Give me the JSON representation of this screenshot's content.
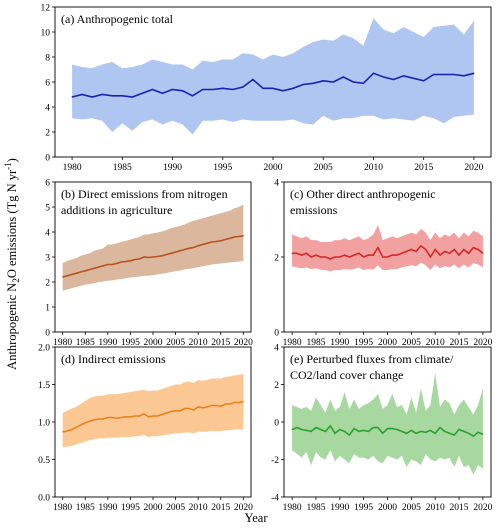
{
  "figure": {
    "ylabel_main": "Anthropogenic N",
    "ylabel_sub": "2",
    "ylabel_mid": "O emissions (Tg N yr",
    "ylabel_sup": "-1",
    "ylabel_end": ")",
    "xlabel": "Year"
  },
  "chart_data": [
    {
      "id": "a",
      "type": "area",
      "title_lines": [
        "(a) Anthropogenic total"
      ],
      "line_color": "#1f1fb4",
      "band_color": "#aec6f0",
      "xlim": [
        1978.3,
        2021.7
      ],
      "ylim": [
        0,
        12
      ],
      "xticks": [
        1980,
        1985,
        1990,
        1995,
        2000,
        2005,
        2010,
        2015,
        2020
      ],
      "yticks": [
        0,
        2,
        4,
        6,
        8,
        10,
        12
      ],
      "x": [
        1980,
        1981,
        1982,
        1983,
        1984,
        1985,
        1986,
        1987,
        1988,
        1989,
        1990,
        1991,
        1992,
        1993,
        1994,
        1995,
        1996,
        1997,
        1998,
        1999,
        2000,
        2001,
        2002,
        2003,
        2004,
        2005,
        2006,
        2007,
        2008,
        2009,
        2010,
        2011,
        2012,
        2013,
        2014,
        2015,
        2016,
        2017,
        2018,
        2019,
        2020
      ],
      "mean": [
        4.8,
        5.0,
        4.8,
        5.0,
        4.9,
        4.9,
        4.8,
        5.1,
        5.4,
        5.1,
        5.4,
        5.3,
        4.9,
        5.4,
        5.4,
        5.5,
        5.4,
        5.6,
        6.2,
        5.5,
        5.5,
        5.3,
        5.5,
        5.8,
        5.9,
        6.1,
        6.0,
        6.4,
        6.0,
        5.9,
        6.7,
        6.4,
        6.2,
        6.5,
        6.3,
        6.1,
        6.6,
        6.6,
        6.6,
        6.5,
        6.7
      ],
      "upper": [
        7.4,
        7.2,
        7.1,
        7.4,
        7.6,
        7.1,
        7.2,
        7.4,
        7.8,
        7.6,
        7.4,
        7.4,
        7.0,
        7.7,
        7.6,
        7.8,
        7.8,
        8.3,
        8.2,
        7.8,
        8.2,
        8.0,
        8.3,
        8.8,
        9.2,
        9.4,
        9.3,
        9.8,
        9.5,
        8.9,
        11.1,
        10.2,
        9.9,
        10.4,
        10.0,
        9.6,
        10.4,
        10.5,
        10.6,
        9.8,
        10.9
      ],
      "lower": [
        3.1,
        3.0,
        3.1,
        2.9,
        2.0,
        2.7,
        2.1,
        2.8,
        3.0,
        2.6,
        2.9,
        2.6,
        1.8,
        2.9,
        2.9,
        3.0,
        2.8,
        3.0,
        2.9,
        2.9,
        2.9,
        2.9,
        3.0,
        2.7,
        2.6,
        3.3,
        2.9,
        3.1,
        3.1,
        3.3,
        3.3,
        3.0,
        3.1,
        3.0,
        2.9,
        3.3,
        3.1,
        2.7,
        3.2,
        3.3,
        3.4
      ]
    },
    {
      "id": "b",
      "type": "area",
      "title_lines": [
        "(b) Direct emissions from nitrogen",
        "additions in agriculture"
      ],
      "line_color": "#b5541e",
      "band_color": "#dbb79e",
      "xlim": [
        1978.3,
        2021.7
      ],
      "ylim": [
        0,
        6
      ],
      "xticks": [
        1980,
        1985,
        1990,
        1995,
        2000,
        2005,
        2010,
        2015,
        2020
      ],
      "yticks": [
        0,
        1,
        2,
        3,
        4,
        5,
        6
      ],
      "x": [
        1980,
        1981,
        1982,
        1983,
        1984,
        1985,
        1986,
        1987,
        1988,
        1989,
        1990,
        1991,
        1992,
        1993,
        1994,
        1995,
        1996,
        1997,
        1998,
        1999,
        2000,
        2001,
        2002,
        2003,
        2004,
        2005,
        2006,
        2007,
        2008,
        2009,
        2010,
        2011,
        2012,
        2013,
        2014,
        2015,
        2016,
        2017,
        2018,
        2019,
        2020
      ],
      "mean": [
        2.2,
        2.25,
        2.3,
        2.35,
        2.4,
        2.45,
        2.5,
        2.55,
        2.6,
        2.65,
        2.7,
        2.7,
        2.75,
        2.8,
        2.82,
        2.85,
        2.9,
        2.92,
        3.0,
        2.98,
        3.0,
        3.02,
        3.05,
        3.1,
        3.15,
        3.2,
        3.25,
        3.3,
        3.35,
        3.38,
        3.45,
        3.5,
        3.55,
        3.6,
        3.62,
        3.65,
        3.7,
        3.75,
        3.8,
        3.82,
        3.85
      ],
      "upper": [
        2.75,
        2.85,
        2.9,
        2.95,
        3.05,
        3.1,
        3.15,
        3.25,
        3.3,
        3.35,
        3.5,
        3.5,
        3.55,
        3.6,
        3.65,
        3.7,
        3.75,
        3.8,
        3.9,
        3.9,
        3.95,
        3.98,
        4.02,
        4.08,
        4.15,
        4.2,
        4.25,
        4.3,
        4.38,
        4.45,
        4.5,
        4.55,
        4.6,
        4.65,
        4.7,
        4.75,
        4.8,
        4.85,
        4.95,
        5.0,
        5.1
      ],
      "lower": [
        1.65,
        1.7,
        1.75,
        1.8,
        1.85,
        1.9,
        1.92,
        1.95,
        2.0,
        2.02,
        2.05,
        2.07,
        2.1,
        2.12,
        2.15,
        2.18,
        2.2,
        2.22,
        2.25,
        2.25,
        2.28,
        2.3,
        2.33,
        2.36,
        2.4,
        2.43,
        2.46,
        2.5,
        2.53,
        2.55,
        2.6,
        2.63,
        2.66,
        2.7,
        2.72,
        2.74,
        2.76,
        2.78,
        2.8,
        2.82,
        2.84
      ]
    },
    {
      "id": "c",
      "type": "area",
      "title_lines": [
        "(c) Other direct anthropogenic",
        "emissions"
      ],
      "line_color": "#d62728",
      "band_color": "#f2a1a1",
      "xlim": [
        1978.3,
        2021.7
      ],
      "ylim": [
        0,
        4
      ],
      "xticks": [
        1980,
        1985,
        1990,
        1995,
        2000,
        2005,
        2010,
        2015,
        2020
      ],
      "yticks": [
        0,
        2,
        4
      ],
      "x": [
        1980,
        1981,
        1982,
        1983,
        1984,
        1985,
        1986,
        1987,
        1988,
        1989,
        1990,
        1991,
        1992,
        1993,
        1994,
        1995,
        1996,
        1997,
        1998,
        1999,
        2000,
        2001,
        2002,
        2003,
        2004,
        2005,
        2006,
        2007,
        2008,
        2009,
        2010,
        2011,
        2012,
        2013,
        2014,
        2015,
        2016,
        2017,
        2018,
        2019,
        2020
      ],
      "mean": [
        2.1,
        2.1,
        2.05,
        2.1,
        2.0,
        2.05,
        2.0,
        2.0,
        1.95,
        2.0,
        2.0,
        2.05,
        2.0,
        2.05,
        2.1,
        2.0,
        2.05,
        2.05,
        2.25,
        2.0,
        2.0,
        2.05,
        2.05,
        2.1,
        2.15,
        2.2,
        2.15,
        2.3,
        2.2,
        2.0,
        2.2,
        2.05,
        2.15,
        2.1,
        2.2,
        2.05,
        2.2,
        2.1,
        2.25,
        2.2,
        2.1
      ],
      "upper": [
        2.6,
        2.55,
        2.5,
        2.55,
        2.45,
        2.45,
        2.4,
        2.4,
        2.4,
        2.45,
        2.45,
        2.5,
        2.45,
        2.5,
        2.55,
        2.45,
        2.5,
        2.6,
        2.85,
        2.45,
        2.5,
        2.55,
        2.5,
        2.55,
        2.6,
        2.65,
        2.6,
        2.75,
        2.65,
        2.45,
        2.65,
        2.5,
        2.6,
        2.55,
        2.65,
        2.5,
        2.65,
        2.55,
        2.7,
        2.65,
        2.55
      ],
      "lower": [
        1.75,
        1.72,
        1.7,
        1.72,
        1.68,
        1.7,
        1.66,
        1.65,
        1.62,
        1.65,
        1.65,
        1.68,
        1.66,
        1.68,
        1.72,
        1.65,
        1.68,
        1.66,
        1.78,
        1.65,
        1.65,
        1.68,
        1.68,
        1.72,
        1.75,
        1.78,
        1.75,
        1.85,
        1.78,
        1.65,
        1.8,
        1.7,
        1.76,
        1.72,
        1.8,
        1.7,
        1.8,
        1.72,
        1.84,
        1.8,
        1.72
      ]
    },
    {
      "id": "d",
      "type": "area",
      "title_lines": [
        "(d) Indirect emissions"
      ],
      "line_color": "#e8821e",
      "band_color": "#fbc793",
      "xlim": [
        1978.3,
        2021.7
      ],
      "ylim": [
        0,
        2.0
      ],
      "xticks": [
        1980,
        1985,
        1990,
        1995,
        2000,
        2005,
        2010,
        2015,
        2020
      ],
      "yticks": [
        0.0,
        0.5,
        1.0,
        1.5,
        2.0
      ],
      "ytick_labels": [
        "0.0",
        "0.5",
        "1.0",
        "1.5",
        "2.0"
      ],
      "x": [
        1980,
        1981,
        1982,
        1983,
        1984,
        1985,
        1986,
        1987,
        1988,
        1989,
        1990,
        1991,
        1992,
        1993,
        1994,
        1995,
        1996,
        1997,
        1998,
        1999,
        2000,
        2001,
        2002,
        2003,
        2004,
        2005,
        2006,
        2007,
        2008,
        2009,
        2010,
        2011,
        2012,
        2013,
        2014,
        2015,
        2016,
        2017,
        2018,
        2019,
        2020
      ],
      "mean": [
        0.87,
        0.88,
        0.9,
        0.93,
        0.96,
        0.99,
        1.01,
        1.03,
        1.04,
        1.04,
        1.06,
        1.06,
        1.05,
        1.06,
        1.07,
        1.07,
        1.08,
        1.08,
        1.11,
        1.07,
        1.08,
        1.08,
        1.1,
        1.12,
        1.14,
        1.15,
        1.15,
        1.18,
        1.18,
        1.16,
        1.2,
        1.19,
        1.2,
        1.22,
        1.22,
        1.21,
        1.24,
        1.24,
        1.26,
        1.26,
        1.27
      ],
      "upper": [
        1.12,
        1.15,
        1.18,
        1.2,
        1.24,
        1.28,
        1.32,
        1.34,
        1.35,
        1.35,
        1.37,
        1.37,
        1.37,
        1.38,
        1.39,
        1.4,
        1.41,
        1.42,
        1.43,
        1.41,
        1.42,
        1.42,
        1.44,
        1.46,
        1.48,
        1.5,
        1.5,
        1.53,
        1.54,
        1.52,
        1.56,
        1.55,
        1.56,
        1.58,
        1.58,
        1.58,
        1.6,
        1.61,
        1.62,
        1.63,
        1.64
      ],
      "lower": [
        0.66,
        0.67,
        0.68,
        0.7,
        0.72,
        0.74,
        0.76,
        0.77,
        0.78,
        0.78,
        0.79,
        0.79,
        0.79,
        0.8,
        0.8,
        0.8,
        0.81,
        0.81,
        0.83,
        0.8,
        0.81,
        0.81,
        0.82,
        0.83,
        0.84,
        0.85,
        0.85,
        0.86,
        0.86,
        0.85,
        0.87,
        0.87,
        0.87,
        0.88,
        0.88,
        0.88,
        0.89,
        0.89,
        0.9,
        0.9,
        0.9
      ]
    },
    {
      "id": "e",
      "type": "area",
      "title_lines": [
        "(e) Perturbed fluxes from climate/",
        "CO2/land cover change"
      ],
      "line_color": "#2ca02c",
      "band_color": "#a7d8a0",
      "xlim": [
        1978.3,
        2021.7
      ],
      "ylim": [
        -4,
        4
      ],
      "xticks": [
        1980,
        1985,
        1990,
        1995,
        2000,
        2005,
        2010,
        2015,
        2020
      ],
      "yticks": [
        -4,
        -2,
        0,
        2,
        4
      ],
      "x": [
        1980,
        1981,
        1982,
        1983,
        1984,
        1985,
        1986,
        1987,
        1988,
        1989,
        1990,
        1991,
        1992,
        1993,
        1994,
        1995,
        1996,
        1997,
        1998,
        1999,
        2000,
        2001,
        2002,
        2003,
        2004,
        2005,
        2006,
        2007,
        2008,
        2009,
        2010,
        2011,
        2012,
        2013,
        2014,
        2015,
        2016,
        2017,
        2018,
        2019,
        2020
      ],
      "mean": [
        -0.4,
        -0.3,
        -0.4,
        -0.45,
        -0.5,
        -0.3,
        -0.4,
        -0.5,
        -0.2,
        -0.6,
        -0.4,
        -0.5,
        -0.7,
        -0.35,
        -0.5,
        -0.45,
        -0.5,
        -0.3,
        -0.3,
        -0.6,
        -0.35,
        -0.35,
        -0.4,
        -0.5,
        -0.6,
        -0.45,
        -0.6,
        -0.5,
        -0.55,
        -0.45,
        -0.6,
        -0.3,
        -0.5,
        -0.6,
        -0.7,
        -0.4,
        -0.5,
        -0.6,
        -0.75,
        -0.55,
        -0.65
      ],
      "upper": [
        0.9,
        0.8,
        0.7,
        0.8,
        0.6,
        1.3,
        0.9,
        0.5,
        1.2,
        0.6,
        0.8,
        1.6,
        0.7,
        1.2,
        0.7,
        0.9,
        1.0,
        1.2,
        1.5,
        0.7,
        0.9,
        1.5,
        0.8,
        0.9,
        0.4,
        1.3,
        0.5,
        1.8,
        0.6,
        0.9,
        2.6,
        0.8,
        1.2,
        1.0,
        0.4,
        0.9,
        1.2,
        0.8,
        0.4,
        0.9,
        1.8
      ],
      "lower": [
        -1.5,
        -1.7,
        -1.9,
        -1.6,
        -2.3,
        -1.6,
        -1.9,
        -2.0,
        -1.5,
        -2.1,
        -1.8,
        -2.0,
        -2.2,
        -1.7,
        -1.9,
        -1.9,
        -2.0,
        -1.8,
        -2.1,
        -2.2,
        -1.8,
        -1.9,
        -2.0,
        -1.8,
        -2.4,
        -2.0,
        -2.1,
        -2.3,
        -1.7,
        -2.0,
        -2.1,
        -1.9,
        -2.0,
        -1.9,
        -2.4,
        -1.8,
        -2.4,
        -2.3,
        -2.8,
        -2.3,
        -2.5
      ]
    }
  ]
}
